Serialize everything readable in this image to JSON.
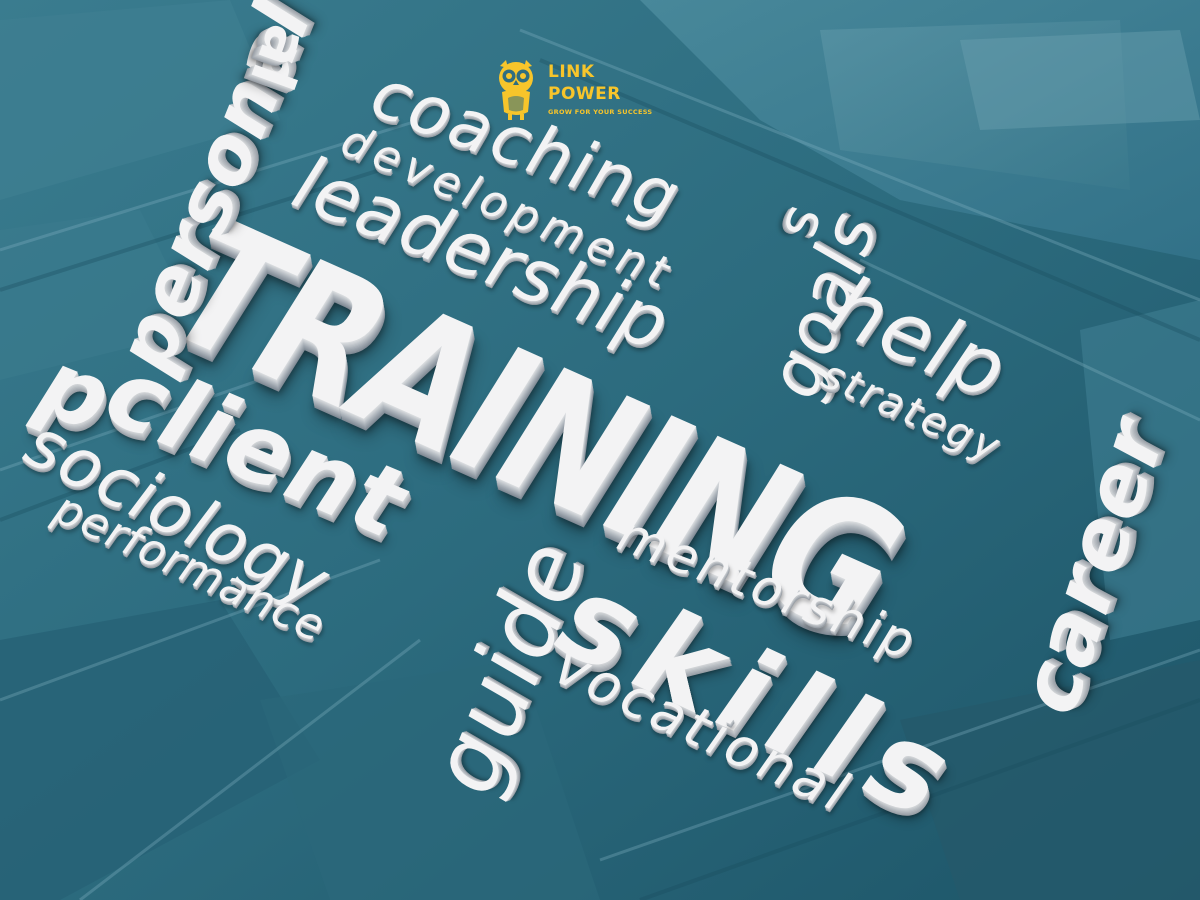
{
  "logo": {
    "line1": "LINK",
    "line2": "POWER",
    "tagline": "GROW FOR YOUR SUCCESS",
    "color": "#f7c52b",
    "icon": "owl-icon"
  },
  "words": {
    "training": "TRAINING",
    "coaching": "coaching",
    "development": "development",
    "leadership": "leadership",
    "personal": "personal",
    "goals": "goals",
    "help": "help",
    "strategy": "strategy",
    "career": "career",
    "client": "client",
    "sociology": "sociology",
    "performance": "performance",
    "guide": "guide",
    "mentorship": "mentorship",
    "skills": "skills",
    "vocational": "vocational",
    "p": "p",
    "s": "s",
    "al": "al"
  },
  "colors": {
    "background": "#2f6d80",
    "letters": "#f3f3f4"
  }
}
